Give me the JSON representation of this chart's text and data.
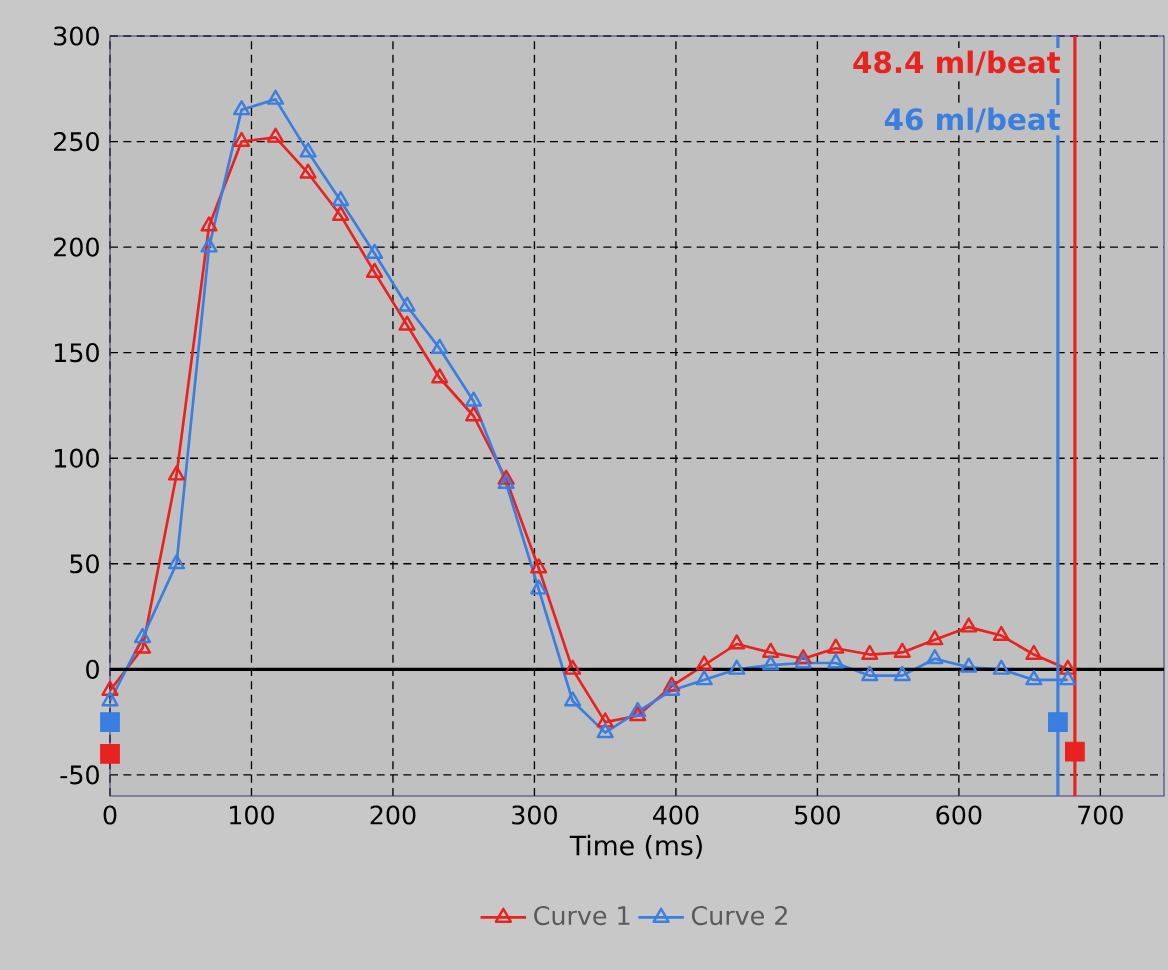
{
  "chart_data": {
    "type": "line",
    "xlabel": "Time (ms)",
    "x": [
      0,
      23,
      47,
      70,
      93,
      117,
      140,
      163,
      187,
      210,
      233,
      257,
      280,
      303,
      327,
      350,
      373,
      397,
      420,
      443,
      467,
      490,
      513,
      537,
      560,
      583,
      607,
      630,
      653,
      677
    ],
    "series": [
      {
        "name": "Curve 1",
        "color": "#e8221e",
        "values": [
          -10,
          10,
          92,
          210,
          250,
          252,
          235,
          215,
          188,
          163,
          138,
          120,
          90,
          48,
          0,
          -25,
          -22,
          -8,
          2,
          12,
          8,
          5,
          10,
          7,
          8,
          14,
          20,
          16,
          7,
          0
        ]
      },
      {
        "name": "Curve 2",
        "color": "#3a7ee0",
        "values": [
          -15,
          15,
          50,
          200,
          265,
          270,
          245,
          222,
          197,
          172,
          152,
          127,
          88,
          38,
          -15,
          -30,
          -20,
          -10,
          -5,
          0,
          2,
          3,
          3,
          -3,
          -3,
          5,
          1,
          0,
          -5,
          -5
        ]
      },
      {
        "type": "scatter",
        "marker": "square",
        "color": "#e8221e",
        "x": [
          0,
          682
        ],
        "values": [
          -40,
          -39
        ]
      },
      {
        "type": "scatter",
        "marker": "square",
        "color": "#3a7ee0",
        "x": [
          0,
          670
        ],
        "values": [
          -25,
          -25
        ]
      }
    ],
    "marker": "triangle",
    "line_style": "solid",
    "xlim": [
      0,
      745
    ],
    "ylim": [
      -60,
      300
    ],
    "xticks": [
      0,
      100,
      200,
      300,
      400,
      500,
      600,
      700
    ],
    "yticks": [
      -50,
      0,
      50,
      100,
      150,
      200,
      250,
      300
    ],
    "grid": true,
    "legend": "bottom",
    "ref_lines": [
      {
        "axis": "y",
        "value": 0,
        "color": "#000000"
      },
      {
        "axis": "x",
        "value": 670,
        "color": "#3a7ee0"
      },
      {
        "axis": "x",
        "value": 682,
        "color": "#e8221e"
      }
    ],
    "annotations": [
      "48.4 ml/beat",
      "46 ml/beat"
    ]
  }
}
